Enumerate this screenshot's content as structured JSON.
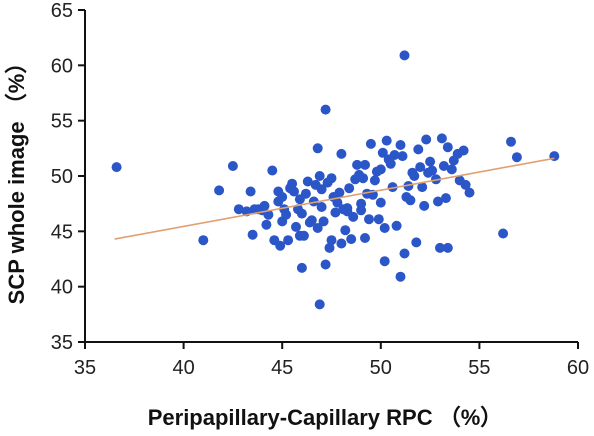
{
  "chart_data": {
    "type": "scatter",
    "title": "",
    "xlabel": "Peripapillary-Capillary RPC （%）",
    "ylabel": "SCP whole image （%）",
    "xlim": [
      35,
      60
    ],
    "ylim": [
      35,
      65
    ],
    "x_ticks": [
      "35",
      "40",
      "45",
      "50",
      "55",
      "60"
    ],
    "y_ticks": [
      "35",
      "40",
      "45",
      "50",
      "55",
      "60",
      "65"
    ],
    "grid": false,
    "legend": "none",
    "colors": {
      "points": "#2b56c8",
      "fit_line": "#e0a070",
      "axes": "#111111"
    },
    "fit_line": {
      "x": [
        36.5,
        58.8
      ],
      "y": [
        44.3,
        51.6
      ]
    },
    "points": {
      "x": [
        36.6,
        41.0,
        41.8,
        42.5,
        42.8,
        43.2,
        43.4,
        43.6,
        43.5,
        44.0,
        44.5,
        44.8,
        45.0,
        45.2,
        45.3,
        45.5,
        45.8,
        46.0,
        46.2,
        46.5,
        46.8,
        47.0,
        47.2,
        47.4,
        47.5,
        47.8,
        48.0,
        48.2,
        48.4,
        48.6,
        48.8,
        49.0,
        49.2,
        49.5,
        49.7,
        49.9,
        50.1,
        50.3,
        50.6,
        50.8,
        51.0,
        51.2,
        51.5,
        51.8,
        52.0,
        52.3,
        52.6,
        52.9,
        53.1,
        53.4,
        53.7,
        54.0,
        54.2,
        54.5,
        56.2,
        56.6,
        56.9,
        58.8,
        46.9,
        47.2,
        45.7,
        47.1,
        50.2,
        51.2,
        53.0,
        53.4,
        44.2,
        44.8,
        45.6,
        46.3,
        46.7,
        47.6,
        48.1,
        48.7,
        49.3,
        49.8,
        50.4,
        51.0,
        51.6,
        52.1,
        52.8,
        44.1,
        44.6,
        45.1,
        45.9,
        46.4,
        46.9,
        47.3,
        47.9,
        48.3,
        48.9,
        49.4,
        50.0,
        50.7,
        51.3,
        51.9,
        52.5,
        53.2,
        53.9,
        54.3,
        43.8,
        44.3,
        45.4,
        46.1,
        46.6,
        47.7,
        48.5,
        49.1,
        49.6,
        50.5,
        51.1,
        51.7,
        52.2,
        53.6,
        45.0,
        46.0,
        47.0,
        48.0,
        49.0,
        50.0,
        44.9,
        45.9,
        46.8,
        47.5,
        48.3,
        49.2,
        50.2,
        51.4,
        52.4,
        53.3
      ],
      "y": [
        50.8,
        44.2,
        48.7,
        50.9,
        47.0,
        46.8,
        48.6,
        47.0,
        44.7,
        46.9,
        50.5,
        47.7,
        48.1,
        46.5,
        44.2,
        49.3,
        47.0,
        41.7,
        48.4,
        46.0,
        52.5,
        47.2,
        56.0,
        43.5,
        49.8,
        47.6,
        52.0,
        45.1,
        48.9,
        46.3,
        51.0,
        47.5,
        44.4,
        52.9,
        49.6,
        46.1,
        52.1,
        53.2,
        49.0,
        45.5,
        40.9,
        60.9,
        47.8,
        44.0,
        50.8,
        53.3,
        50.5,
        47.7,
        53.4,
        43.5,
        51.4,
        49.6,
        52.3,
        48.5,
        44.8,
        53.1,
        51.7,
        51.8,
        38.4,
        42.0,
        45.4,
        45.9,
        42.3,
        43.0,
        43.5,
        52.6,
        45.6,
        48.6,
        48.6,
        49.5,
        49.2,
        48.1,
        47.0,
        49.7,
        48.4,
        50.4,
        51.5,
        52.8,
        50.3,
        49.0,
        49.7,
        47.3,
        44.2,
        47.0,
        47.9,
        45.8,
        50.0,
        49.4,
        48.5,
        46.8,
        50.1,
        46.1,
        50.6,
        51.9,
        48.1,
        52.4,
        51.3,
        50.9,
        52.0,
        49.2,
        47.0,
        46.5,
        48.9,
        44.6,
        47.7,
        46.7,
        44.3,
        49.8,
        48.3,
        51.1,
        51.8,
        50.0,
        47.3,
        50.6,
        45.9,
        46.6,
        48.8,
        43.9,
        46.9,
        47.6,
        43.7,
        44.6,
        45.3,
        44.2,
        47.1,
        51.0,
        45.3,
        49.1,
        50.3,
        48.0
      ]
    }
  }
}
